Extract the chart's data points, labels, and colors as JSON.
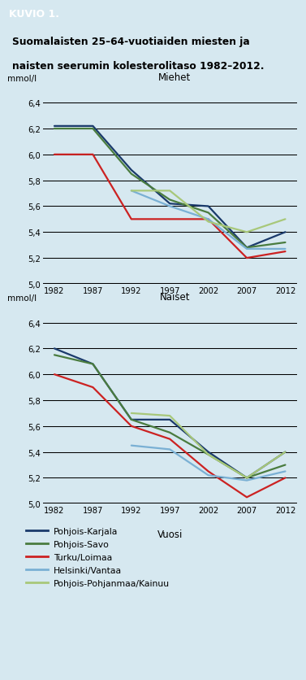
{
  "years": [
    1982,
    1987,
    1992,
    1997,
    2002,
    2007,
    2012
  ],
  "men": {
    "Pohjois-Karjala": [
      6.22,
      6.22,
      5.88,
      5.62,
      5.6,
      5.28,
      5.4
    ],
    "Pohjois-Savo": [
      6.2,
      6.2,
      5.85,
      5.65,
      5.55,
      5.28,
      5.32
    ],
    "Turku/Loimaa": [
      6.0,
      6.0,
      5.5,
      5.5,
      5.5,
      5.2,
      5.25
    ],
    "Helsinki/Vantaa": [
      null,
      null,
      5.72,
      5.6,
      5.5,
      5.27,
      5.27
    ],
    "Pohjois-Pohjanmaa/Kainuu": [
      null,
      null,
      5.72,
      5.72,
      5.48,
      5.4,
      5.5
    ]
  },
  "women": {
    "Pohjois-Karjala": [
      6.2,
      6.08,
      5.65,
      5.65,
      5.4,
      5.2,
      5.4
    ],
    "Pohjois-Savo": [
      6.15,
      6.08,
      5.65,
      5.55,
      5.38,
      5.2,
      5.3
    ],
    "Turku/Loimaa": [
      6.0,
      5.9,
      5.6,
      5.5,
      5.25,
      5.05,
      5.2
    ],
    "Helsinki/Vantaa": [
      null,
      null,
      5.45,
      5.42,
      5.22,
      5.18,
      5.25
    ],
    "Pohjois-Pohjanmaa/Kainuu": [
      null,
      null,
      5.7,
      5.68,
      5.38,
      5.2,
      5.4
    ]
  },
  "colors": {
    "Pohjois-Karjala": "#1a3a6b",
    "Pohjois-Savo": "#4a7c3f",
    "Turku/Loimaa": "#cc2222",
    "Helsinki/Vantaa": "#7ab0d4",
    "Pohjois-Pohjanmaa/Kainuu": "#a8c87a"
  },
  "legend_labels": [
    "Pohjois-Karjala",
    "Pohjois-Savo",
    "Turku/Loimaa",
    "Helsinki/Vantaa",
    "Pohjois-Pohjanmaa/Kainuu"
  ],
  "title_line1": "Suomalaisten 25–64-vuotiaiden miesten ja",
  "title_line2": "naisten seerumin kolesterolitaso 1982–2012.",
  "kuvio_label": "KUVIO 1.",
  "men_label": "Miehet",
  "women_label": "Naiset",
  "ylabel": "mmol/l",
  "xlabel": "Vuosi",
  "ylim": [
    5.0,
    6.5
  ],
  "yticks": [
    5.0,
    5.2,
    5.4,
    5.6,
    5.8,
    6.0,
    6.2,
    6.4
  ],
  "xticks": [
    1982,
    1987,
    1992,
    1997,
    2002,
    2007,
    2012
  ],
  "bg": "#d6e8f0",
  "header_bg": "#2b6ca8",
  "header_text_color": "#ffffff",
  "line_width": 1.6
}
